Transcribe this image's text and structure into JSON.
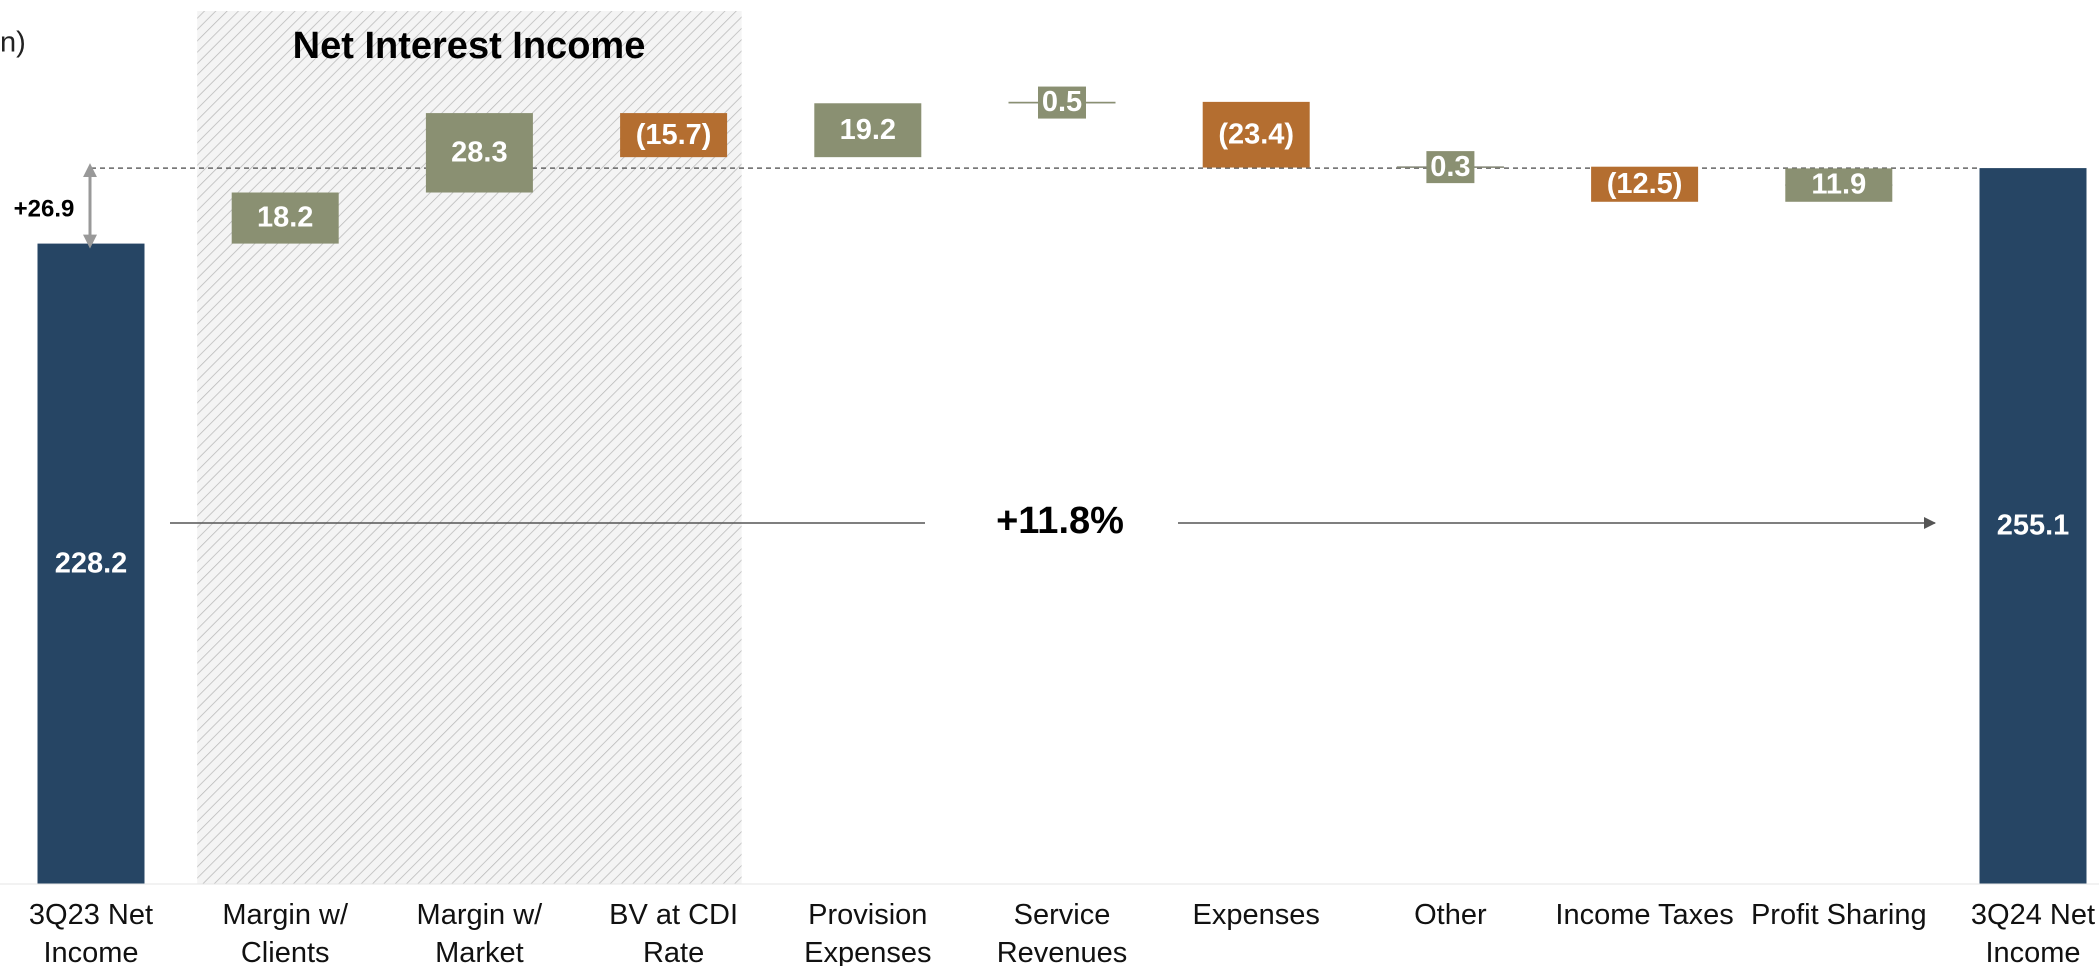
{
  "chart_data": {
    "type": "waterfall",
    "title": "Net Interest Income",
    "unit_note": "n)",
    "growth_label": "+11.8%",
    "difference_label": "+26.9",
    "categories": [
      "3Q23 Net Income",
      "Margin w/ Clients",
      "Margin w/ Market",
      "BV at CDI Rate",
      "Provision Expenses",
      "Service Revenues",
      "Expenses",
      "Other",
      "Income Taxes",
      "Profit Sharing",
      "3Q24 Net Income"
    ],
    "values": [
      228.2,
      18.2,
      28.3,
      -15.7,
      19.2,
      0.5,
      -23.4,
      0.3,
      -12.5,
      11.9,
      255.1
    ],
    "value_labels": [
      "228.2",
      "18.2",
      "28.3",
      "(15.7)",
      "19.2",
      "0.5",
      "(23.4)",
      "0.3",
      "(12.5)",
      "11.9",
      "255.1"
    ],
    "is_total": [
      true,
      false,
      false,
      false,
      false,
      false,
      false,
      false,
      false,
      false,
      true
    ],
    "colors": {
      "total": "#264564",
      "increase": "#8a9072",
      "decrease": "#b46e30"
    },
    "ylim": [
      0,
      315
    ]
  }
}
